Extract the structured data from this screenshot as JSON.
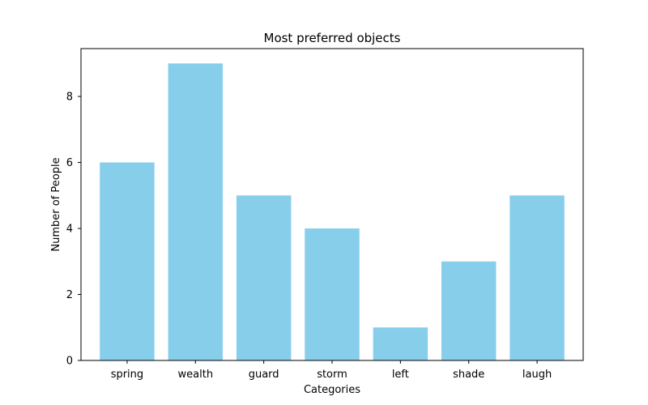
{
  "chart_data": {
    "type": "bar",
    "title": "Most preferred objects",
    "xlabel": "Categories",
    "ylabel": "Number of People",
    "categories": [
      "spring",
      "wealth",
      "guard",
      "storm",
      "left",
      "shade",
      "laugh"
    ],
    "values": [
      6,
      9,
      5,
      4,
      1,
      3,
      5
    ],
    "ylim": [
      0,
      9.45
    ],
    "yticks": [
      0,
      2,
      4,
      6,
      8
    ],
    "grid": false,
    "bar_color": "#87CEEB"
  }
}
